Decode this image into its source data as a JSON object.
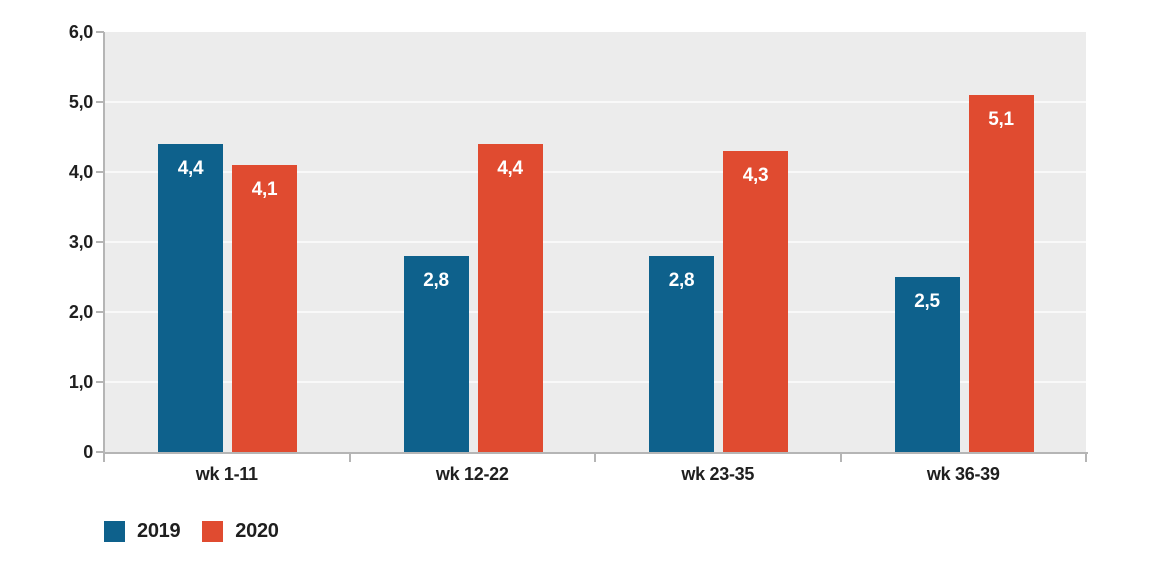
{
  "chart_data": {
    "type": "bar",
    "title": "",
    "xlabel": "",
    "ylabel": "",
    "categories": [
      "wk 1-11",
      "wk 12-22",
      "wk 23-35",
      "wk 36-39"
    ],
    "series": [
      {
        "name": "2019",
        "color": "#0e618c",
        "values": [
          4.4,
          2.8,
          2.8,
          2.5
        ],
        "labels": [
          "4,4",
          "2,8",
          "2,8",
          "2,5"
        ]
      },
      {
        "name": "2020",
        "color": "#e04b30",
        "values": [
          4.1,
          4.4,
          4.3,
          5.1
        ],
        "labels": [
          "4,1",
          "4,4",
          "4,3",
          "5,1"
        ]
      }
    ],
    "y_ticks": [
      {
        "value": 6,
        "label": "6,0"
      },
      {
        "value": 5,
        "label": "5,0"
      },
      {
        "value": 4,
        "label": "4,0"
      },
      {
        "value": 3,
        "label": "3,0"
      },
      {
        "value": 2,
        "label": "2,0"
      },
      {
        "value": 1,
        "label": "1,0"
      },
      {
        "value": 0,
        "label": "0"
      }
    ],
    "ylim": [
      0,
      6
    ],
    "grid": "horizontal",
    "legend_position": "bottom-left",
    "colors": {
      "plot_background": "#ececec",
      "gridline": "#f9f9f9",
      "axis": "#b5b5b5",
      "text": "#1f1f1f",
      "bar_label": "#ffffff"
    }
  }
}
